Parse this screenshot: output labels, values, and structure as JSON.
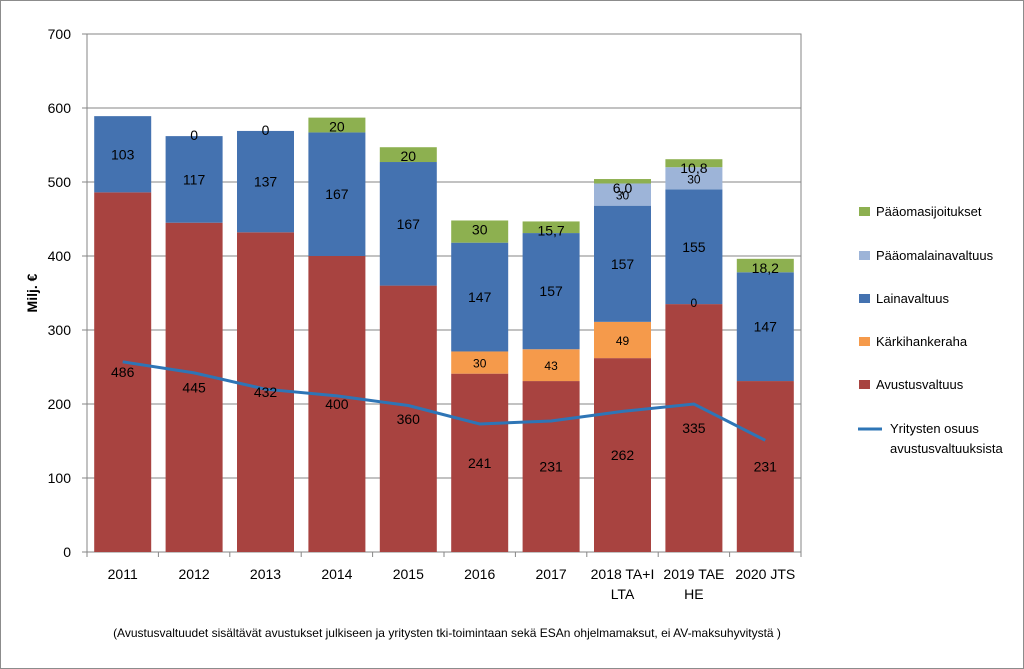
{
  "chart_data": {
    "type": "bar",
    "stacked": true,
    "ylabel": "Milj. €",
    "ylim": [
      0,
      700
    ],
    "yticks": [
      0,
      100,
      200,
      300,
      400,
      500,
      600,
      700
    ],
    "grid": true,
    "legend_position": "right",
    "categories": [
      [
        "2011"
      ],
      [
        "2012"
      ],
      [
        "2013"
      ],
      [
        "2014"
      ],
      [
        "2015"
      ],
      [
        "2016"
      ],
      [
        "2017"
      ],
      [
        "2018 TA+I",
        "LTA"
      ],
      [
        "2019 TAE",
        "HE"
      ],
      [
        "2020 JTS"
      ]
    ],
    "series": [
      {
        "name": "Avustusvaltuus",
        "color": "#a84340",
        "values": [
          486,
          445,
          432,
          400,
          360,
          241,
          231,
          262,
          335,
          231
        ],
        "labels": [
          "486",
          "445",
          "432",
          "400",
          "360",
          "241",
          "231",
          "262",
          "335",
          "231"
        ]
      },
      {
        "name": "Kärkihankeraha",
        "color": "#f59a4b",
        "values": [
          0,
          0,
          0,
          0,
          0,
          30,
          43,
          49,
          0,
          0
        ],
        "labels": [
          null,
          null,
          null,
          null,
          null,
          "30",
          "43",
          "49",
          "0",
          null
        ]
      },
      {
        "name": "Lainavaltuus",
        "color": "#4472b0",
        "values": [
          103,
          117,
          137,
          167,
          167,
          147,
          157,
          157,
          155,
          147
        ],
        "labels": [
          "103",
          "117",
          "137",
          "167",
          "167",
          "147",
          "157",
          "157",
          "155",
          "147"
        ]
      },
      {
        "name": "Pääomalainavaltuus",
        "color": "#9db4d8",
        "values": [
          0,
          0,
          0,
          0,
          0,
          0,
          0,
          30,
          30,
          0
        ],
        "labels": [
          null,
          null,
          null,
          null,
          null,
          null,
          null,
          "30",
          "30",
          null
        ]
      },
      {
        "name": "Pääomasijoitukset",
        "color": "#8db050",
        "values": [
          0,
          0,
          0,
          20,
          20,
          30,
          15.7,
          6.0,
          10.8,
          18.2
        ],
        "labels": [
          null,
          "0",
          "0",
          "20",
          "20",
          "30",
          "15,7",
          "6,0",
          "10,8",
          "18,2"
        ]
      }
    ],
    "line_series": {
      "name": "Yritysten osuus avustusvaltuuksista",
      "legend_lines": [
        "Yritysten osuus",
        "avustusvaltuuksista"
      ],
      "color": "#2e75b6",
      "values": [
        257,
        242,
        220,
        211,
        198,
        173,
        177,
        190,
        200,
        151
      ]
    },
    "legend_order": [
      "Pääomasijoitukset",
      "Pääomalainavaltuus",
      "Lainavaltuus",
      "Kärkihankeraha",
      "Avustusvaltuus",
      "Yritysten osuus avustusvaltuuksista"
    ],
    "footnote": "(Avustusvaltuudet sisältävät avustukset julkiseen ja yritysten tki-toimintaan sekä ESAn ohjelmamaksut, ei AV-maksuhyvitystä )"
  }
}
